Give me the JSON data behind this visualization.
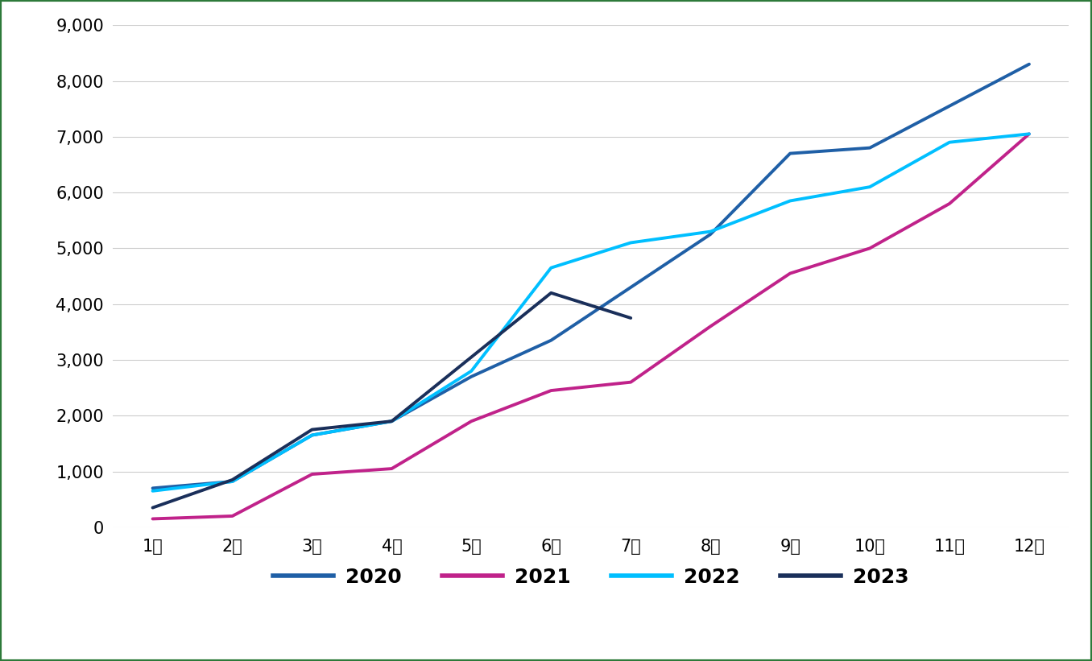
{
  "series": {
    "2020": {
      "x": [
        1,
        2,
        3,
        4,
        5,
        6,
        7,
        8,
        9,
        10,
        11,
        12
      ],
      "y": [
        700,
        820,
        1650,
        1900,
        2700,
        3350,
        4300,
        5250,
        6700,
        6800,
        7550,
        8300
      ],
      "color": "#1F5FA6",
      "linewidth": 2.8
    },
    "2021": {
      "x": [
        1,
        2,
        3,
        4,
        5,
        6,
        7,
        8,
        9,
        10,
        11,
        12
      ],
      "y": [
        150,
        200,
        950,
        1050,
        1900,
        2450,
        2600,
        3600,
        4550,
        5000,
        5800,
        7050
      ],
      "color": "#C0228A",
      "linewidth": 2.8
    },
    "2022": {
      "x": [
        1,
        2,
        3,
        4,
        5,
        6,
        7,
        8,
        9,
        10,
        11,
        12
      ],
      "y": [
        650,
        820,
        1650,
        1900,
        2800,
        4650,
        5100,
        5300,
        5850,
        6100,
        6900,
        7050
      ],
      "color": "#00BFFF",
      "linewidth": 2.8
    },
    "2023": {
      "x": [
        1,
        2,
        3,
        4,
        5,
        6,
        7
      ],
      "y": [
        350,
        850,
        1750,
        1900,
        3050,
        4200,
        3750
      ],
      "color": "#1A2F5A",
      "linewidth": 2.8
    }
  },
  "xlim": [
    0.5,
    12.5
  ],
  "ylim": [
    0,
    9000
  ],
  "yticks": [
    0,
    1000,
    2000,
    3000,
    4000,
    5000,
    6000,
    7000,
    8000,
    9000
  ],
  "xtick_labels": [
    "1月",
    "2月",
    "3月",
    "4月",
    "5月",
    "6月",
    "7月",
    "8月",
    "9月",
    "10月",
    "11月",
    "12月"
  ],
  "background_color": "#ffffff",
  "plot_bg_color": "#ffffff",
  "grid_color": "#cccccc",
  "legend_labels": [
    "2020",
    "2021",
    "2022",
    "2023"
  ],
  "legend_colors": [
    "#1F5FA6",
    "#C0228A",
    "#00BFFF",
    "#1A2F5A"
  ],
  "tick_fontsize": 15,
  "legend_fontsize": 18,
  "border_color": "#2d7a3a"
}
